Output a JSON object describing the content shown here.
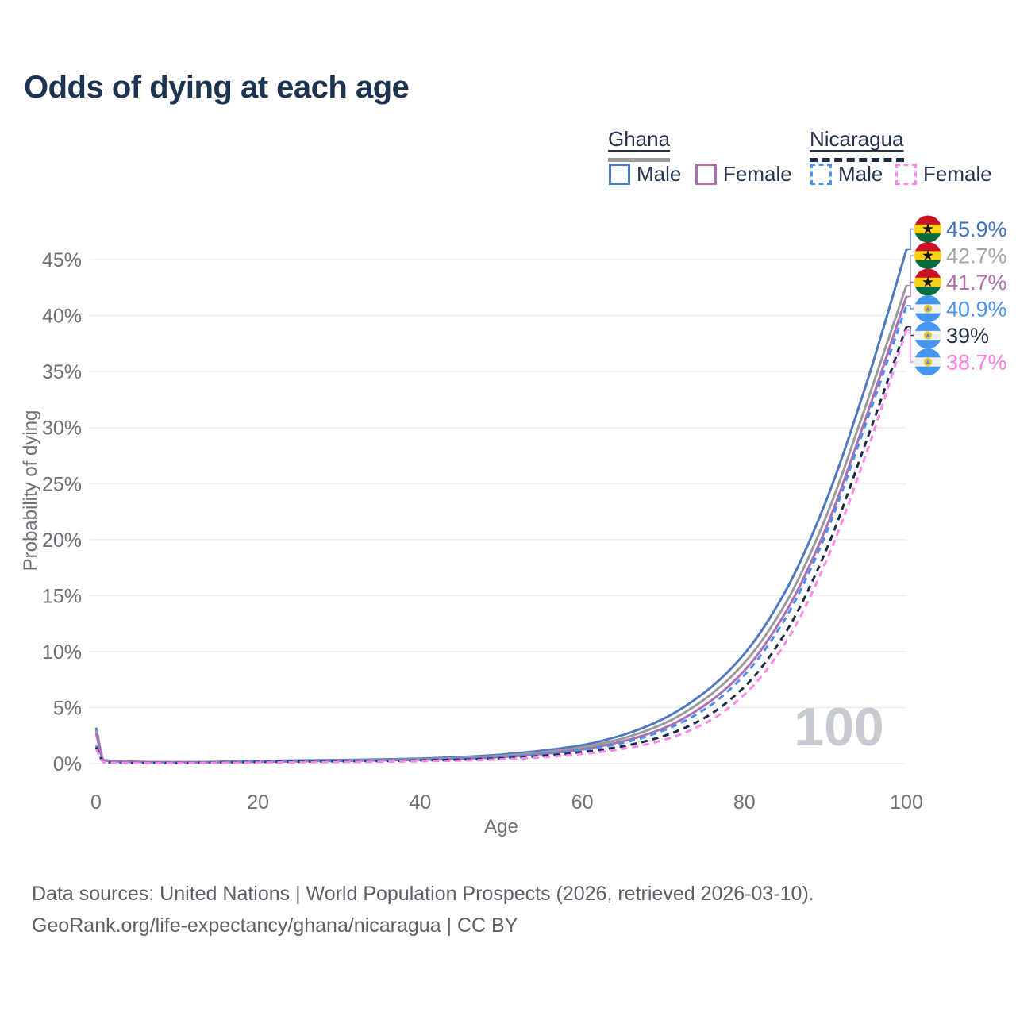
{
  "title": "Odds of dying at each age",
  "watermark": "100",
  "colors": {
    "grid": "#ededf0",
    "axis_text": "#6d7177",
    "watermark": "#c7cad0",
    "title": "#1c3351",
    "legend_text": "#25344e",
    "footer_text": "#5b6067"
  },
  "legend": {
    "groups": [
      {
        "label": "Ghana",
        "line_style": "solid",
        "line_color": "#9b9b9d",
        "items": [
          {
            "label": "Male",
            "color": "#4e79c1",
            "dashed": false
          },
          {
            "label": "Female",
            "color": "#ae6fae",
            "dashed": false
          }
        ]
      },
      {
        "label": "Nicaragua",
        "line_style": "dashed",
        "line_color": "#1d2c46",
        "items": [
          {
            "label": "Male",
            "color": "#4a8ff2",
            "dashed": true
          },
          {
            "label": "Female",
            "color": "#fc86e9",
            "dashed": true
          }
        ]
      }
    ]
  },
  "flags": {
    "ghana": {
      "stripes": [
        "#ce1126",
        "#fcd116",
        "#006b3f"
      ],
      "star": "#151515"
    },
    "nicaragua": {
      "stripes": [
        "#4596ef",
        "#f0f2f4",
        "#4596ef"
      ],
      "emblem_ring": "#f2c428",
      "emblem_inner": "#4596ef"
    }
  },
  "footer": {
    "line1": "Data sources: United Nations | World Population Prospects (2026, retrieved 2026-03-10).",
    "line2": "GeoRank.org/life-expectancy/ghana/nicaragua | CC BY"
  },
  "chart_data": {
    "type": "line",
    "title": "Odds of dying at each age",
    "xlabel": "Age",
    "ylabel": "Probability of dying",
    "x_ticks": [
      0,
      20,
      40,
      60,
      80,
      100
    ],
    "y_ticks_pct": [
      0,
      5,
      10,
      15,
      20,
      25,
      30,
      35,
      40,
      45
    ],
    "xlim": [
      0,
      100
    ],
    "ylim_pct": [
      0,
      47.5
    ],
    "grid": true,
    "legend_position": "top-right",
    "series": [
      {
        "name": "Ghana Male",
        "country": "Ghana",
        "sex": "male",
        "color": "#4e79c1",
        "dash": false,
        "flag": "ghana",
        "end_label": "45.9%",
        "end_value_pct": 45.9,
        "label_color": "#3f6fbe",
        "points": [
          [
            0,
            3.2
          ],
          [
            1,
            0.3
          ],
          [
            5,
            0.16
          ],
          [
            10,
            0.13
          ],
          [
            15,
            0.16
          ],
          [
            20,
            0.23
          ],
          [
            25,
            0.28
          ],
          [
            30,
            0.32
          ],
          [
            35,
            0.37
          ],
          [
            40,
            0.45
          ],
          [
            45,
            0.58
          ],
          [
            50,
            0.8
          ],
          [
            55,
            1.15
          ],
          [
            60,
            1.65
          ],
          [
            65,
            2.55
          ],
          [
            70,
            4.0
          ],
          [
            75,
            6.3
          ],
          [
            80,
            9.8
          ],
          [
            85,
            15.3
          ],
          [
            90,
            23.3
          ],
          [
            95,
            33.8
          ],
          [
            100,
            45.9
          ]
        ]
      },
      {
        "name": "Ghana (both sexes)",
        "country": "Ghana",
        "sex": "all",
        "color": "#9b9b9d",
        "dash": false,
        "flag": "ghana",
        "end_label": "42.7%",
        "end_value_pct": 42.7,
        "label_color": "#a5a5a7",
        "points": [
          [
            0,
            2.95
          ],
          [
            1,
            0.28
          ],
          [
            5,
            0.15
          ],
          [
            10,
            0.12
          ],
          [
            15,
            0.14
          ],
          [
            20,
            0.2
          ],
          [
            25,
            0.24
          ],
          [
            30,
            0.28
          ],
          [
            35,
            0.32
          ],
          [
            40,
            0.39
          ],
          [
            45,
            0.5
          ],
          [
            50,
            0.69
          ],
          [
            55,
            1.0
          ],
          [
            60,
            1.45
          ],
          [
            65,
            2.25
          ],
          [
            70,
            3.55
          ],
          [
            75,
            5.7
          ],
          [
            80,
            9.0
          ],
          [
            85,
            14.2
          ],
          [
            90,
            21.9
          ],
          [
            95,
            32.0
          ],
          [
            100,
            42.7
          ]
        ]
      },
      {
        "name": "Ghana Female",
        "country": "Ghana",
        "sex": "female",
        "color": "#ae6fae",
        "dash": false,
        "flag": "ghana",
        "end_label": "41.7%",
        "end_value_pct": 41.7,
        "label_color": "#ad6cae",
        "points": [
          [
            0,
            2.7
          ],
          [
            1,
            0.26
          ],
          [
            5,
            0.14
          ],
          [
            10,
            0.11
          ],
          [
            15,
            0.12
          ],
          [
            20,
            0.16
          ],
          [
            25,
            0.2
          ],
          [
            30,
            0.24
          ],
          [
            35,
            0.28
          ],
          [
            40,
            0.34
          ],
          [
            45,
            0.43
          ],
          [
            50,
            0.59
          ],
          [
            55,
            0.86
          ],
          [
            60,
            1.27
          ],
          [
            65,
            2.0
          ],
          [
            70,
            3.15
          ],
          [
            75,
            5.15
          ],
          [
            80,
            8.3
          ],
          [
            85,
            13.4
          ],
          [
            90,
            20.9
          ],
          [
            95,
            30.9
          ],
          [
            100,
            41.7
          ]
        ]
      },
      {
        "name": "Nicaragua Male",
        "country": "Nicaragua",
        "sex": "male",
        "color": "#4a8ff2",
        "dash": true,
        "flag": "nicaragua",
        "end_label": "40.9%",
        "end_value_pct": 40.9,
        "label_color": "#4a90f2",
        "points": [
          [
            0,
            1.6
          ],
          [
            1,
            0.14
          ],
          [
            5,
            0.07
          ],
          [
            10,
            0.06
          ],
          [
            15,
            0.12
          ],
          [
            20,
            0.2
          ],
          [
            25,
            0.24
          ],
          [
            30,
            0.27
          ],
          [
            35,
            0.3
          ],
          [
            40,
            0.35
          ],
          [
            45,
            0.44
          ],
          [
            50,
            0.58
          ],
          [
            55,
            0.84
          ],
          [
            60,
            1.22
          ],
          [
            65,
            1.85
          ],
          [
            70,
            2.95
          ],
          [
            75,
            4.8
          ],
          [
            80,
            7.9
          ],
          [
            85,
            12.9
          ],
          [
            90,
            20.4
          ],
          [
            95,
            30.4
          ],
          [
            100,
            40.9
          ]
        ]
      },
      {
        "name": "Nicaragua (both sexes)",
        "country": "Nicaragua",
        "sex": "all",
        "color": "#1d2c46",
        "dash": true,
        "flag": "nicaragua",
        "end_label": "39%",
        "end_value_pct": 39.0,
        "label_color": "#1f2f45",
        "points": [
          [
            0,
            1.45
          ],
          [
            1,
            0.13
          ],
          [
            5,
            0.06
          ],
          [
            10,
            0.05
          ],
          [
            15,
            0.09
          ],
          [
            20,
            0.14
          ],
          [
            25,
            0.17
          ],
          [
            30,
            0.2
          ],
          [
            35,
            0.23
          ],
          [
            40,
            0.28
          ],
          [
            45,
            0.35
          ],
          [
            50,
            0.47
          ],
          [
            55,
            0.68
          ],
          [
            60,
            1.02
          ],
          [
            65,
            1.55
          ],
          [
            70,
            2.45
          ],
          [
            75,
            4.05
          ],
          [
            80,
            6.85
          ],
          [
            85,
            11.6
          ],
          [
            90,
            18.9
          ],
          [
            95,
            28.7
          ],
          [
            100,
            39.0
          ]
        ]
      },
      {
        "name": "Nicaragua Female",
        "country": "Nicaragua",
        "sex": "female",
        "color": "#fc86e9",
        "dash": true,
        "flag": "nicaragua",
        "end_label": "38.7%",
        "end_value_pct": 38.7,
        "label_color": "#fb7ce0",
        "points": [
          [
            0,
            1.3
          ],
          [
            1,
            0.11
          ],
          [
            5,
            0.05
          ],
          [
            10,
            0.045
          ],
          [
            15,
            0.07
          ],
          [
            20,
            0.09
          ],
          [
            25,
            0.11
          ],
          [
            30,
            0.14
          ],
          [
            35,
            0.17
          ],
          [
            40,
            0.21
          ],
          [
            45,
            0.27
          ],
          [
            50,
            0.38
          ],
          [
            55,
            0.56
          ],
          [
            60,
            0.87
          ],
          [
            65,
            1.32
          ],
          [
            70,
            2.1
          ],
          [
            75,
            3.55
          ],
          [
            80,
            6.15
          ],
          [
            85,
            10.7
          ],
          [
            90,
            17.9
          ],
          [
            95,
            27.6
          ],
          [
            100,
            38.7
          ]
        ]
      }
    ]
  }
}
